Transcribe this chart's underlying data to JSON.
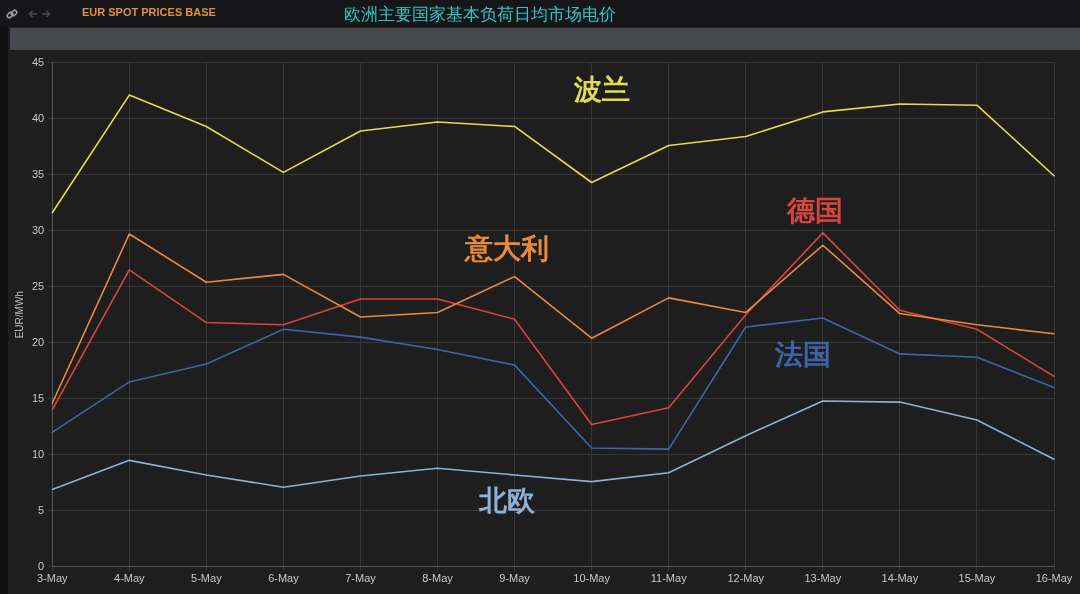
{
  "chart_data": {
    "type": "line",
    "title": "欧洲主要国家基本负荷日均市场电价",
    "subtitle": "EUR SPOT PRICES BASE",
    "ylabel": "EUR/MWh",
    "categories": [
      "3-May",
      "4-May",
      "5-May",
      "6-May",
      "7-May",
      "8-May",
      "9-May",
      "10-May",
      "11-May",
      "12-May",
      "13-May",
      "14-May",
      "15-May",
      "16-May"
    ],
    "series": [
      {
        "name": "波兰",
        "color": "#e3dc4c",
        "values": [
          31.6,
          42.1,
          39.3,
          35.2,
          38.9,
          39.7,
          39.3,
          34.3,
          37.6,
          38.4,
          40.6,
          41.3,
          41.2,
          34.9
        ]
      },
      {
        "name": "意大利",
        "color": "#e88a3a",
        "values": [
          14.6,
          29.7,
          25.4,
          26.1,
          22.3,
          22.7,
          25.9,
          20.4,
          24.0,
          22.7,
          28.7,
          22.6,
          21.6,
          20.8
        ]
      },
      {
        "name": "德国",
        "color": "#d8453c",
        "values": [
          14.0,
          26.5,
          21.8,
          21.6,
          23.9,
          23.9,
          22.1,
          12.7,
          14.2,
          22.5,
          29.8,
          22.9,
          21.2,
          17.0
        ]
      },
      {
        "name": "法国",
        "color": "#3e64a8",
        "values": [
          12.0,
          16.5,
          18.1,
          21.2,
          20.5,
          19.4,
          18.0,
          10.6,
          10.5,
          21.4,
          22.2,
          19.0,
          18.7,
          16.0
        ]
      },
      {
        "name": "北欧",
        "color": "#8fb0d8",
        "values": [
          6.9,
          9.5,
          8.2,
          7.1,
          8.1,
          8.8,
          8.2,
          7.6,
          8.4,
          11.7,
          14.8,
          14.7,
          13.1,
          9.6
        ]
      }
    ],
    "ylim": [
      0,
      45
    ],
    "yticks": [
      0,
      5,
      10,
      15,
      20,
      25,
      30,
      35,
      40,
      45
    ],
    "grid": true,
    "marker": "none"
  }
}
